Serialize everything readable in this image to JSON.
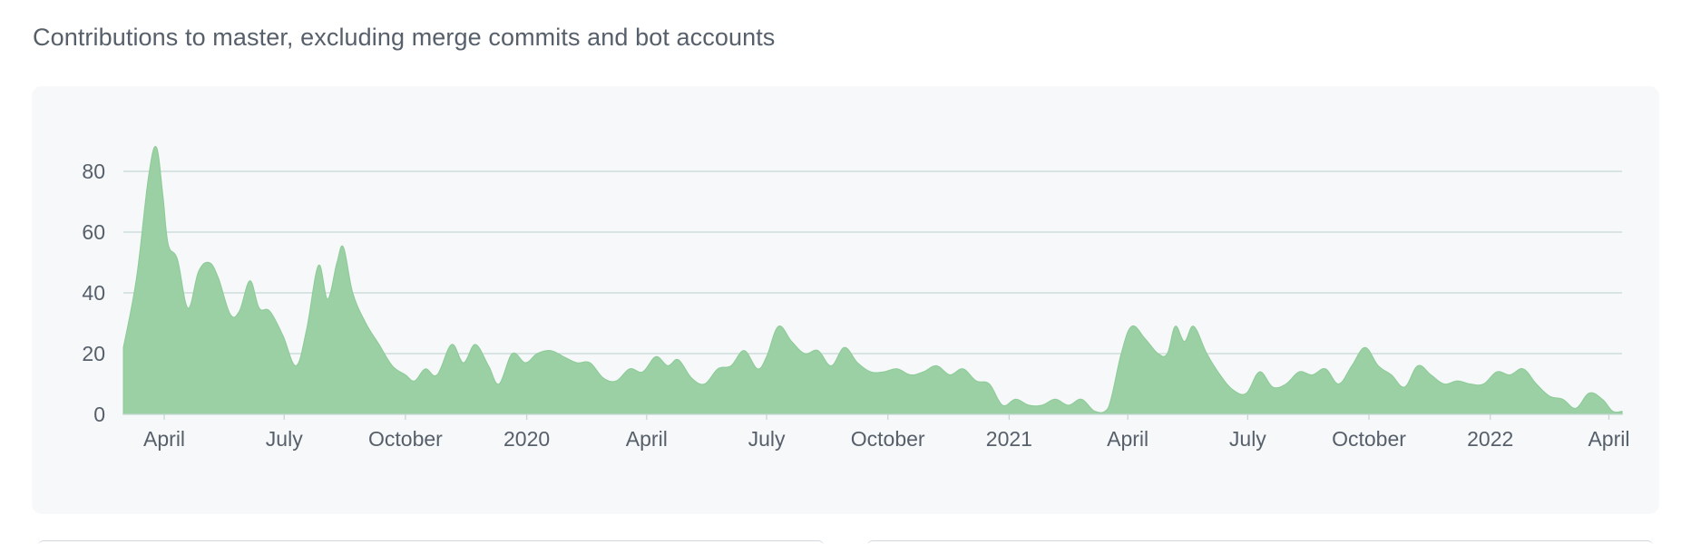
{
  "subtitle": "Contributions to master, excluding merge commits and bot accounts",
  "colors": {
    "area_fill": "#9bcfa4",
    "area_stroke": "#8ccb97",
    "grid": "#c5d7d3",
    "axis_text": "#57606a",
    "panel_bg": "#f6f8fa"
  },
  "chart_data": {
    "type": "area",
    "title": "",
    "xlabel": "",
    "ylabel": "",
    "ylim": [
      0,
      100
    ],
    "y_ticks": [
      0,
      20,
      40,
      60,
      80
    ],
    "x_range": [
      "2019-03-01",
      "2022-04-11"
    ],
    "x_ticks": [
      {
        "date": "2019-04-01",
        "label": "April"
      },
      {
        "date": "2019-07-01",
        "label": "July"
      },
      {
        "date": "2019-10-01",
        "label": "October"
      },
      {
        "date": "2020-01-01",
        "label": "2020"
      },
      {
        "date": "2020-04-01",
        "label": "April"
      },
      {
        "date": "2020-07-01",
        "label": "July"
      },
      {
        "date": "2020-10-01",
        "label": "October"
      },
      {
        "date": "2021-01-01",
        "label": "2021"
      },
      {
        "date": "2021-04-01",
        "label": "April"
      },
      {
        "date": "2021-07-01",
        "label": "July"
      },
      {
        "date": "2021-10-01",
        "label": "October"
      },
      {
        "date": "2022-01-01",
        "label": "2022"
      },
      {
        "date": "2022-04-01",
        "label": "April"
      }
    ],
    "grid": true,
    "legend": "none",
    "series": [
      {
        "points": [
          [
            "2019-03-01",
            22
          ],
          [
            "2019-03-11",
            45
          ],
          [
            "2019-03-20",
            78
          ],
          [
            "2019-03-26",
            88
          ],
          [
            "2019-03-31",
            72
          ],
          [
            "2019-04-04",
            56
          ],
          [
            "2019-04-11",
            51
          ],
          [
            "2019-04-19",
            35
          ],
          [
            "2019-04-27",
            47
          ],
          [
            "2019-05-05",
            50
          ],
          [
            "2019-05-12",
            45
          ],
          [
            "2019-05-21",
            33
          ],
          [
            "2019-05-28",
            34
          ],
          [
            "2019-06-05",
            44
          ],
          [
            "2019-06-12",
            35
          ],
          [
            "2019-06-20",
            34
          ],
          [
            "2019-06-30",
            26
          ],
          [
            "2019-07-10",
            16
          ],
          [
            "2019-07-18",
            28
          ],
          [
            "2019-07-27",
            49
          ],
          [
            "2019-08-03",
            38
          ],
          [
            "2019-08-10",
            50
          ],
          [
            "2019-08-15",
            55
          ],
          [
            "2019-08-22",
            40
          ],
          [
            "2019-09-01",
            30
          ],
          [
            "2019-09-11",
            23
          ],
          [
            "2019-09-21",
            16
          ],
          [
            "2019-10-01",
            13
          ],
          [
            "2019-10-08",
            11
          ],
          [
            "2019-10-16",
            15
          ],
          [
            "2019-10-25",
            13
          ],
          [
            "2019-11-05",
            23
          ],
          [
            "2019-11-14",
            17
          ],
          [
            "2019-11-23",
            23
          ],
          [
            "2019-12-03",
            16
          ],
          [
            "2019-12-11",
            10
          ],
          [
            "2019-12-21",
            20
          ],
          [
            "2019-12-31",
            17
          ],
          [
            "2020-01-09",
            20
          ],
          [
            "2020-01-19",
            21
          ],
          [
            "2020-01-29",
            19
          ],
          [
            "2020-02-08",
            17
          ],
          [
            "2020-02-18",
            17
          ],
          [
            "2020-02-28",
            12
          ],
          [
            "2020-03-09",
            11
          ],
          [
            "2020-03-19",
            15
          ],
          [
            "2020-03-29",
            14
          ],
          [
            "2020-04-08",
            19
          ],
          [
            "2020-04-17",
            16
          ],
          [
            "2020-04-25",
            18
          ],
          [
            "2020-05-05",
            12
          ],
          [
            "2020-05-15",
            10
          ],
          [
            "2020-05-25",
            15
          ],
          [
            "2020-06-04",
            16
          ],
          [
            "2020-06-14",
            21
          ],
          [
            "2020-06-24",
            15
          ],
          [
            "2020-07-01",
            19
          ],
          [
            "2020-07-10",
            29
          ],
          [
            "2020-07-20",
            24
          ],
          [
            "2020-07-30",
            20
          ],
          [
            "2020-08-09",
            21
          ],
          [
            "2020-08-19",
            16
          ],
          [
            "2020-08-29",
            22
          ],
          [
            "2020-09-08",
            17
          ],
          [
            "2020-09-18",
            14
          ],
          [
            "2020-09-28",
            14
          ],
          [
            "2020-10-08",
            15
          ],
          [
            "2020-10-18",
            13
          ],
          [
            "2020-10-28",
            14
          ],
          [
            "2020-11-07",
            16
          ],
          [
            "2020-11-17",
            13
          ],
          [
            "2020-11-27",
            15
          ],
          [
            "2020-12-07",
            11
          ],
          [
            "2020-12-17",
            10
          ],
          [
            "2020-12-27",
            3
          ],
          [
            "2021-01-06",
            5
          ],
          [
            "2021-01-16",
            3
          ],
          [
            "2021-01-26",
            3
          ],
          [
            "2021-02-05",
            5
          ],
          [
            "2021-02-15",
            3
          ],
          [
            "2021-02-25",
            5
          ],
          [
            "2021-03-07",
            1
          ],
          [
            "2021-03-17",
            2
          ],
          [
            "2021-03-27",
            20
          ],
          [
            "2021-04-04",
            29
          ],
          [
            "2021-04-14",
            25
          ],
          [
            "2021-04-24",
            20
          ],
          [
            "2021-05-01",
            20
          ],
          [
            "2021-05-07",
            29
          ],
          [
            "2021-05-14",
            24
          ],
          [
            "2021-05-21",
            29
          ],
          [
            "2021-05-31",
            20
          ],
          [
            "2021-06-10",
            13
          ],
          [
            "2021-06-20",
            8
          ],
          [
            "2021-06-30",
            7
          ],
          [
            "2021-07-10",
            14
          ],
          [
            "2021-07-20",
            9
          ],
          [
            "2021-07-30",
            10
          ],
          [
            "2021-08-09",
            14
          ],
          [
            "2021-08-19",
            13
          ],
          [
            "2021-08-29",
            15
          ],
          [
            "2021-09-08",
            10
          ],
          [
            "2021-09-18",
            16
          ],
          [
            "2021-09-28",
            22
          ],
          [
            "2021-10-08",
            16
          ],
          [
            "2021-10-18",
            13
          ],
          [
            "2021-10-28",
            9
          ],
          [
            "2021-11-07",
            16
          ],
          [
            "2021-11-17",
            13
          ],
          [
            "2021-11-27",
            10
          ],
          [
            "2021-12-07",
            11
          ],
          [
            "2021-12-17",
            10
          ],
          [
            "2021-12-27",
            10
          ],
          [
            "2022-01-06",
            14
          ],
          [
            "2022-01-16",
            13
          ],
          [
            "2022-01-26",
            15
          ],
          [
            "2022-02-05",
            10
          ],
          [
            "2022-02-15",
            6
          ],
          [
            "2022-02-25",
            5
          ],
          [
            "2022-03-07",
            2
          ],
          [
            "2022-03-17",
            7
          ],
          [
            "2022-03-27",
            5
          ],
          [
            "2022-04-04",
            1
          ],
          [
            "2022-04-11",
            1
          ]
        ]
      }
    ]
  }
}
